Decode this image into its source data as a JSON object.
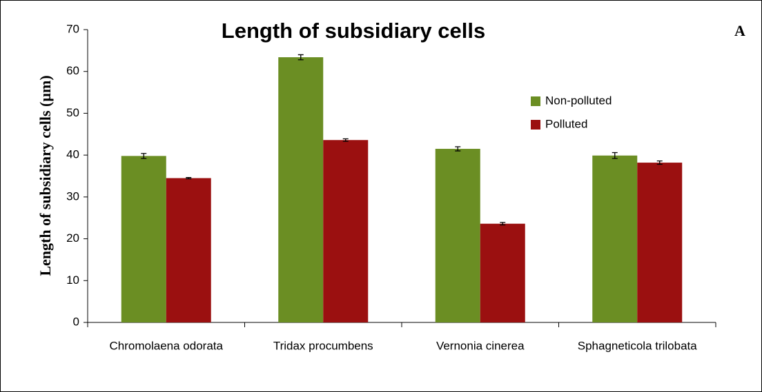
{
  "chart_data": {
    "type": "bar",
    "title": "Length of subsidiary cells",
    "panel_label": "A",
    "y_label": "Length of subsidiary cells (µm)",
    "categories": [
      "Chromolaena odorata",
      "Tridax procumbens",
      "Vernonia cinerea",
      "Sphagneticola trilobata"
    ],
    "series": [
      {
        "name": "Non-polluted",
        "color": "#6b8e23",
        "values": [
          39.8,
          63.4,
          41.5,
          39.9
        ],
        "errors": [
          0.6,
          0.6,
          0.5,
          0.7
        ]
      },
      {
        "name": "Polluted",
        "color": "#9b1010",
        "values": [
          34.5,
          43.6,
          23.6,
          38.2
        ],
        "errors": [
          0.15,
          0.3,
          0.3,
          0.4
        ]
      }
    ],
    "ylim": [
      0,
      70
    ],
    "yticks": [
      0,
      10,
      20,
      30,
      40,
      50,
      60,
      70
    ],
    "grid": false
  }
}
